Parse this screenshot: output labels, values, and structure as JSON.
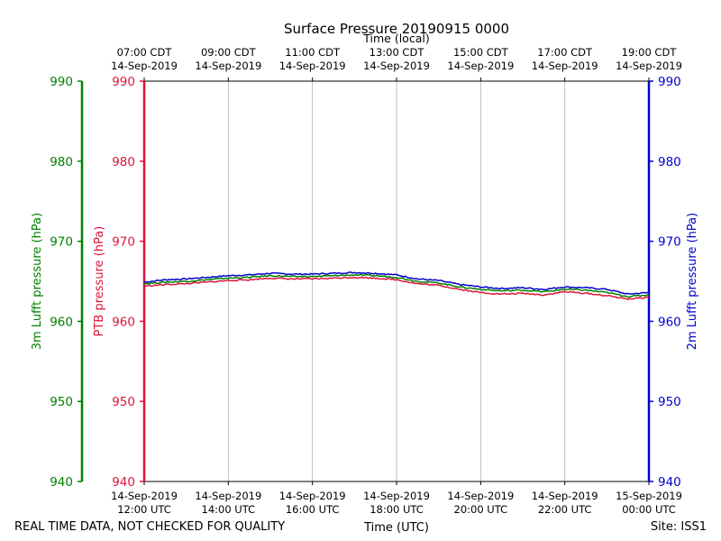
{
  "chart_data": {
    "type": "line",
    "title": "Surface Pressure 20190915 0000",
    "top_xlabel": "Time (local)",
    "xlabel": "Time (UTC)",
    "xlim_hours_utc": [
      12,
      24
    ],
    "bottom_ticks": [
      {
        "hour": 12,
        "date": "14-Sep-2019",
        "time": "12:00 UTC"
      },
      {
        "hour": 14,
        "date": "14-Sep-2019",
        "time": "14:00 UTC"
      },
      {
        "hour": 16,
        "date": "14-Sep-2019",
        "time": "16:00 UTC"
      },
      {
        "hour": 18,
        "date": "14-Sep-2019",
        "time": "18:00 UTC"
      },
      {
        "hour": 20,
        "date": "14-Sep-2019",
        "time": "20:00 UTC"
      },
      {
        "hour": 22,
        "date": "14-Sep-2019",
        "time": "22:00 UTC"
      },
      {
        "hour": 24,
        "date": "15-Sep-2019",
        "time": "00:00 UTC"
      }
    ],
    "top_ticks": [
      {
        "hour": 12,
        "time": "07:00 CDT",
        "date": "14-Sep-2019"
      },
      {
        "hour": 14,
        "time": "09:00 CDT",
        "date": "14-Sep-2019"
      },
      {
        "hour": 16,
        "time": "11:00 CDT",
        "date": "14-Sep-2019"
      },
      {
        "hour": 18,
        "time": "13:00 CDT",
        "date": "14-Sep-2019"
      },
      {
        "hour": 20,
        "time": "15:00 CDT",
        "date": "14-Sep-2019"
      },
      {
        "hour": 22,
        "time": "17:00 CDT",
        "date": "14-Sep-2019"
      },
      {
        "hour": 24,
        "time": "19:00 CDT",
        "date": "14-Sep-2019"
      }
    ],
    "ylim": [
      940,
      990
    ],
    "yticks": [
      "940",
      "950",
      "960",
      "970",
      "980",
      "990"
    ],
    "y_axes": [
      {
        "label": "3m Lufft pressure (hPa)",
        "color": "#008000",
        "side": "far-left"
      },
      {
        "label": "PTB pressure (hPa)",
        "color": "#dc143c",
        "side": "left"
      },
      {
        "label": "2m Lufft pressure (hPa)",
        "color": "#0000cd",
        "side": "right"
      }
    ],
    "grid": "vertical",
    "series": [
      {
        "name": "2m Lufft pressure",
        "color": "#0000cd",
        "x": [
          12.0,
          12.5,
          13.0,
          13.5,
          14.0,
          14.5,
          15.0,
          15.5,
          16.0,
          16.5,
          17.0,
          17.5,
          18.0,
          18.5,
          19.0,
          19.5,
          20.0,
          20.5,
          21.0,
          21.5,
          22.0,
          22.5,
          23.0,
          23.5,
          24.0
        ],
        "values": [
          964.9,
          965.2,
          965.3,
          965.5,
          965.7,
          965.8,
          966.0,
          965.9,
          965.9,
          966.0,
          966.1,
          966.0,
          965.8,
          965.3,
          965.1,
          964.6,
          964.3,
          964.1,
          964.2,
          964.0,
          964.3,
          964.2,
          964.0,
          963.4,
          963.6
        ]
      },
      {
        "name": "3m Lufft pressure",
        "color": "#008000",
        "x": [
          12.0,
          12.5,
          13.0,
          13.5,
          14.0,
          14.5,
          15.0,
          15.5,
          16.0,
          16.5,
          17.0,
          17.5,
          18.0,
          18.5,
          19.0,
          19.5,
          20.0,
          20.5,
          21.0,
          21.5,
          22.0,
          22.5,
          23.0,
          23.5,
          24.0
        ],
        "values": [
          964.7,
          964.9,
          965.0,
          965.2,
          965.4,
          965.5,
          965.7,
          965.6,
          965.6,
          965.7,
          965.8,
          965.7,
          965.5,
          965.0,
          964.8,
          964.3,
          964.0,
          963.8,
          963.9,
          963.7,
          964.0,
          963.9,
          963.6,
          963.1,
          963.3
        ]
      },
      {
        "name": "PTB pressure",
        "color": "#dc143c",
        "x": [
          12.0,
          12.5,
          13.0,
          13.5,
          14.0,
          14.5,
          15.0,
          15.5,
          16.0,
          16.5,
          17.0,
          17.5,
          18.0,
          18.5,
          19.0,
          19.5,
          20.0,
          20.5,
          21.0,
          21.5,
          22.0,
          22.5,
          23.0,
          23.5,
          24.0
        ],
        "values": [
          964.4,
          964.6,
          964.7,
          964.9,
          965.1,
          965.2,
          965.4,
          965.3,
          965.3,
          965.4,
          965.5,
          965.4,
          965.2,
          964.7,
          964.5,
          964.0,
          963.6,
          963.4,
          963.5,
          963.3,
          963.7,
          963.5,
          963.2,
          962.8,
          963.0
        ]
      }
    ]
  },
  "footer": {
    "quality_note": "REAL TIME DATA, NOT CHECKED FOR QUALITY",
    "site": "Site: ISS1"
  }
}
